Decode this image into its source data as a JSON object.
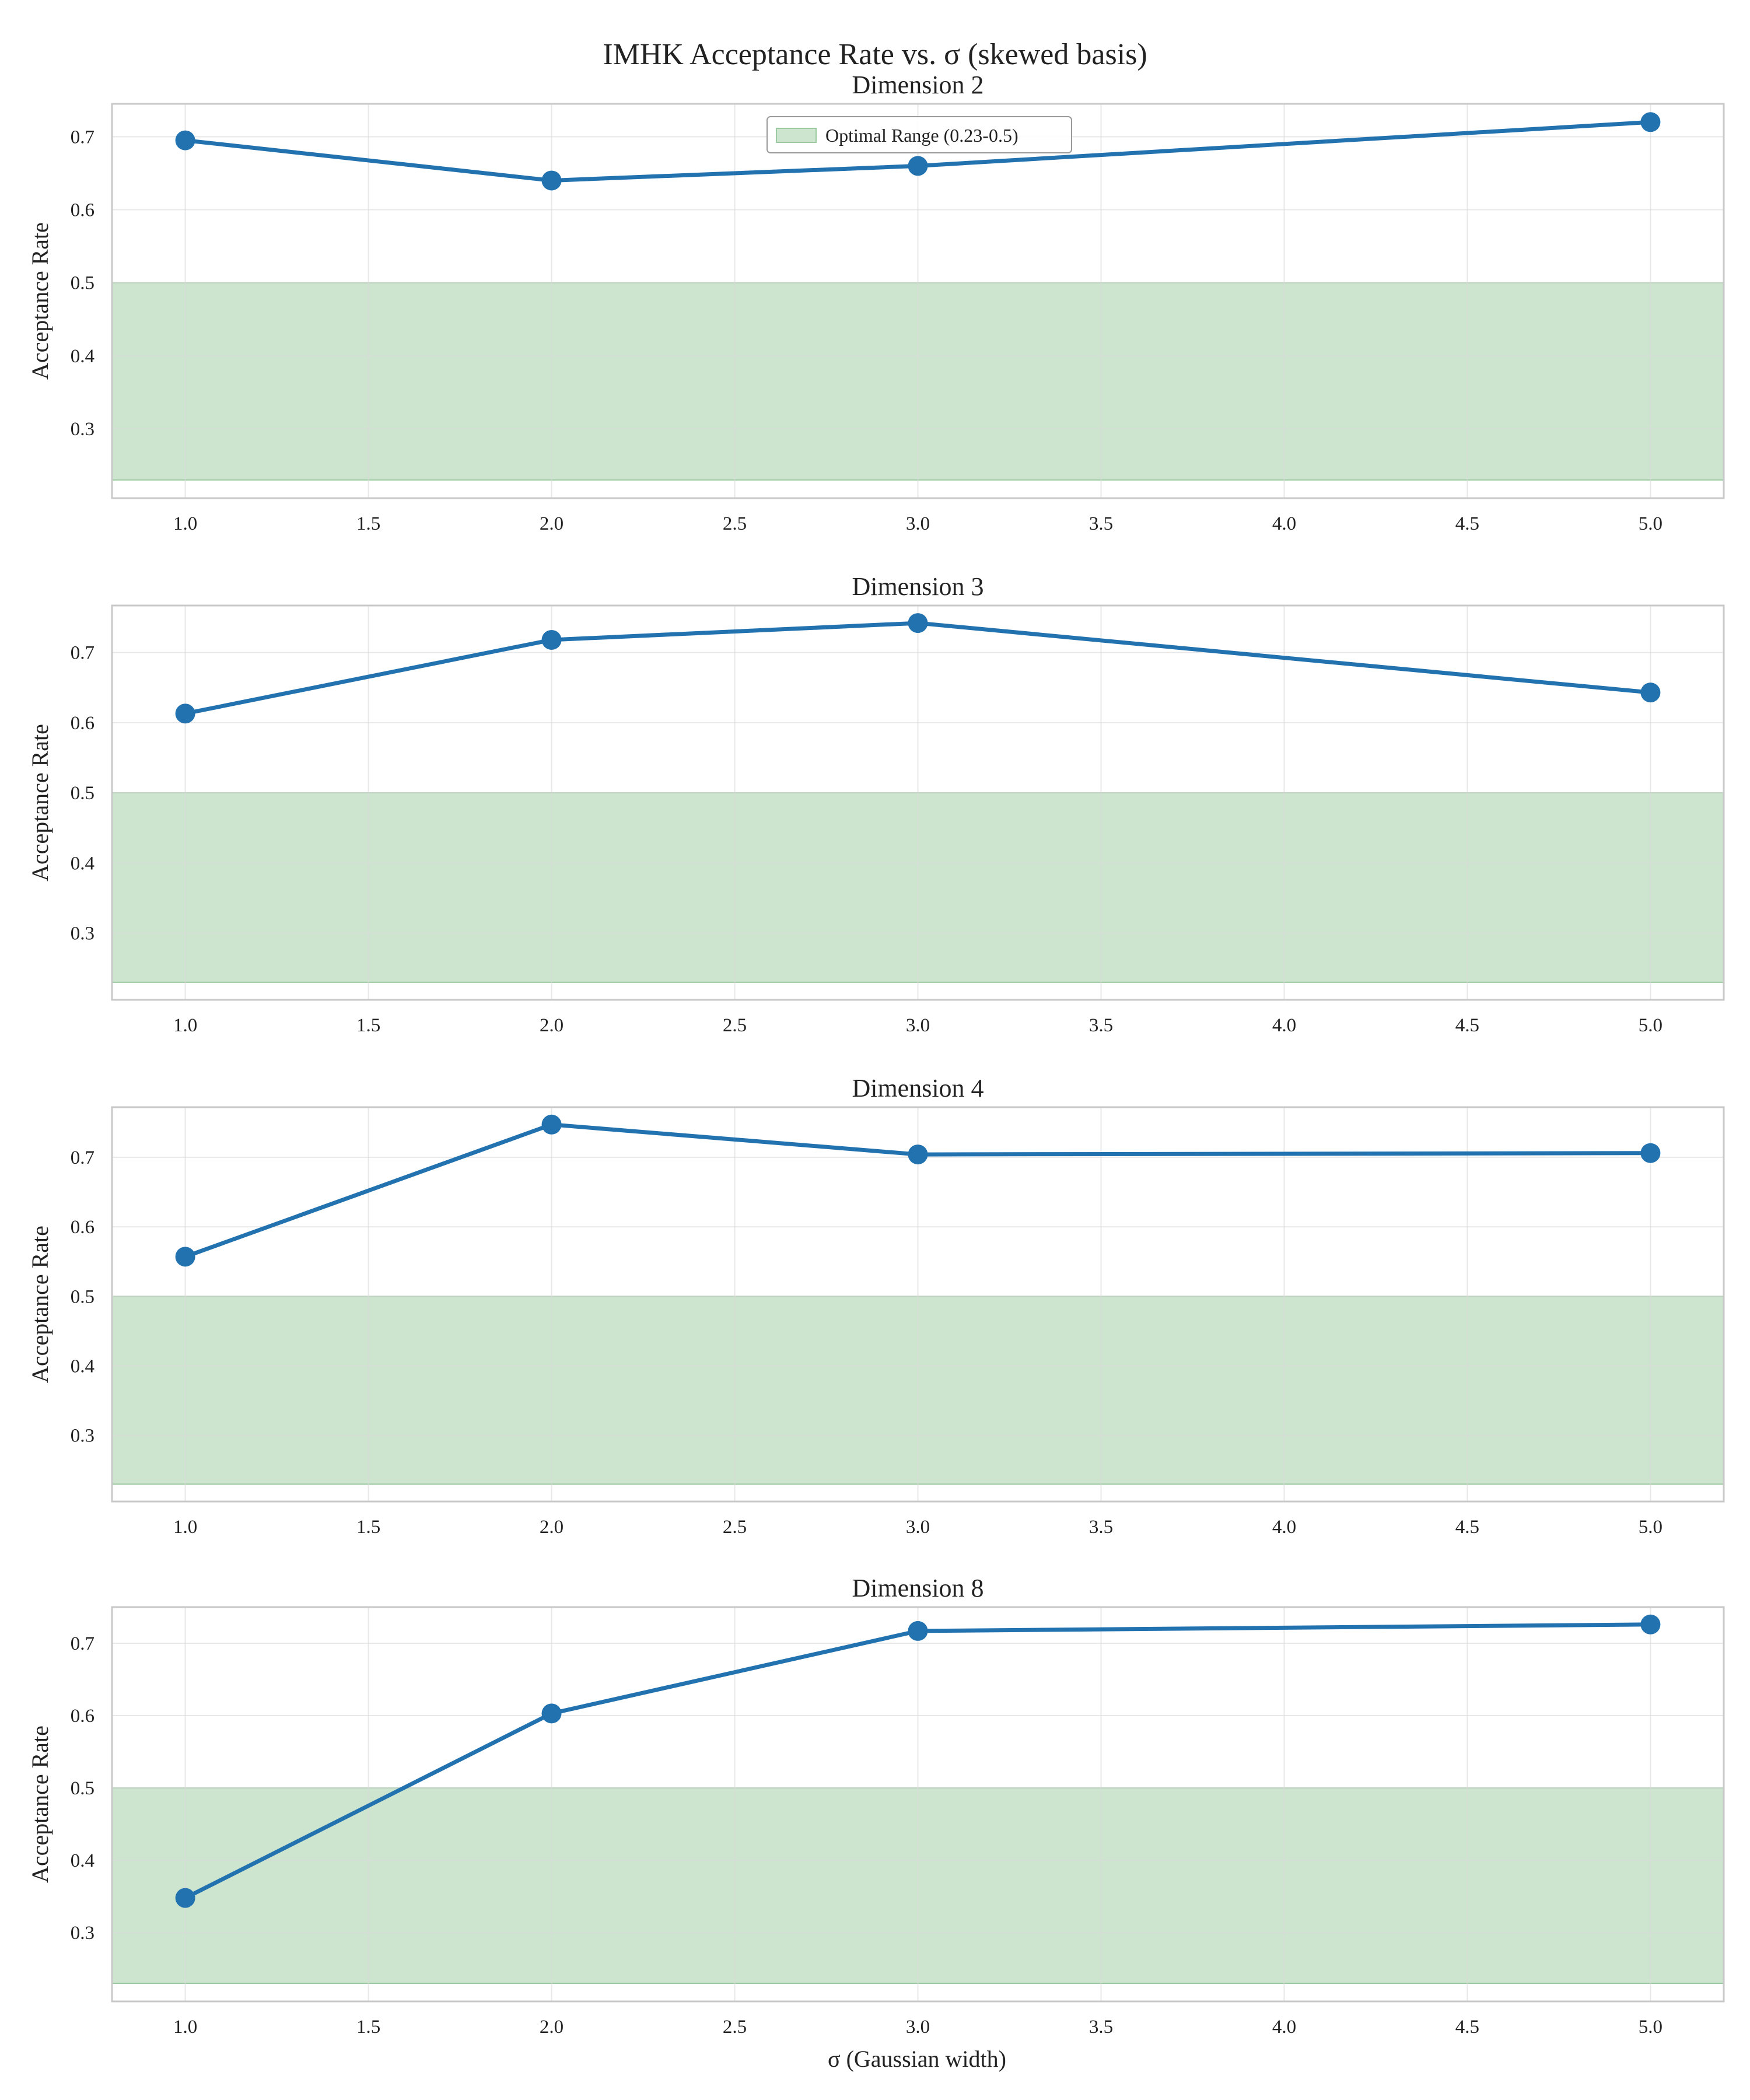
{
  "figure_title": "IMHK Acceptance Rate vs. σ (skewed basis)",
  "x_axis_label": "σ (Gaussian width)",
  "colors": {
    "line": "#2372b0",
    "optimal_band": "#cde5cf",
    "optimal_band_edge": "#9cc9a0",
    "grid": "#e6e6e6",
    "frame": "#c8c8c8"
  },
  "chart_data": [
    {
      "type": "line",
      "title": "Dimension 2",
      "xlabel": "",
      "ylabel": "Acceptance Rate",
      "x": [
        1.0,
        2.0,
        3.0,
        5.0
      ],
      "series": [
        {
          "values": [
            0.695,
            0.64,
            0.66,
            0.72
          ]
        }
      ],
      "xlim": [
        0.8,
        5.2
      ],
      "ylim": [
        0.205,
        0.745
      ],
      "xticks": [
        "1.0",
        "1.5",
        "2.0",
        "2.5",
        "3.0",
        "3.5",
        "4.0",
        "4.5",
        "5.0"
      ],
      "yticks": [
        "0.3",
        "0.4",
        "0.5",
        "0.6",
        "0.7"
      ],
      "optimal_range": {
        "low": 0.23,
        "high": 0.5,
        "label": "Optimal Range (0.23-0.5)"
      },
      "legend": "upper center",
      "grid": true
    },
    {
      "type": "line",
      "title": "Dimension 3",
      "xlabel": "",
      "ylabel": "Acceptance Rate",
      "x": [
        1.0,
        2.0,
        3.0,
        5.0
      ],
      "series": [
        {
          "values": [
            0.613,
            0.718,
            0.742,
            0.643
          ]
        }
      ],
      "xlim": [
        0.8,
        5.2
      ],
      "ylim": [
        0.205,
        0.767
      ],
      "xticks": [
        "1.0",
        "1.5",
        "2.0",
        "2.5",
        "3.0",
        "3.5",
        "4.0",
        "4.5",
        "5.0"
      ],
      "yticks": [
        "0.3",
        "0.4",
        "0.5",
        "0.6",
        "0.7"
      ],
      "optimal_range": {
        "low": 0.23,
        "high": 0.5
      },
      "grid": true
    },
    {
      "type": "line",
      "title": "Dimension 4",
      "xlabel": "",
      "ylabel": "Acceptance Rate",
      "x": [
        1.0,
        2.0,
        3.0,
        5.0
      ],
      "series": [
        {
          "values": [
            0.557,
            0.747,
            0.704,
            0.706
          ]
        }
      ],
      "xlim": [
        0.8,
        5.2
      ],
      "ylim": [
        0.205,
        0.772
      ],
      "xticks": [
        "1.0",
        "1.5",
        "2.0",
        "2.5",
        "3.0",
        "3.5",
        "4.0",
        "4.5",
        "5.0"
      ],
      "yticks": [
        "0.3",
        "0.4",
        "0.5",
        "0.6",
        "0.7"
      ],
      "optimal_range": {
        "low": 0.23,
        "high": 0.5
      },
      "grid": true
    },
    {
      "type": "line",
      "title": "Dimension 8",
      "xlabel": "σ (Gaussian width)",
      "ylabel": "Acceptance Rate",
      "x": [
        1.0,
        2.0,
        3.0,
        5.0
      ],
      "series": [
        {
          "values": [
            0.348,
            0.603,
            0.717,
            0.726
          ]
        }
      ],
      "xlim": [
        0.8,
        5.2
      ],
      "ylim": [
        0.205,
        0.75
      ],
      "xticks": [
        "1.0",
        "1.5",
        "2.0",
        "2.5",
        "3.0",
        "3.5",
        "4.0",
        "4.5",
        "5.0"
      ],
      "yticks": [
        "0.3",
        "0.4",
        "0.5",
        "0.6",
        "0.7"
      ],
      "optimal_range": {
        "low": 0.23,
        "high": 0.5
      },
      "grid": true
    }
  ]
}
